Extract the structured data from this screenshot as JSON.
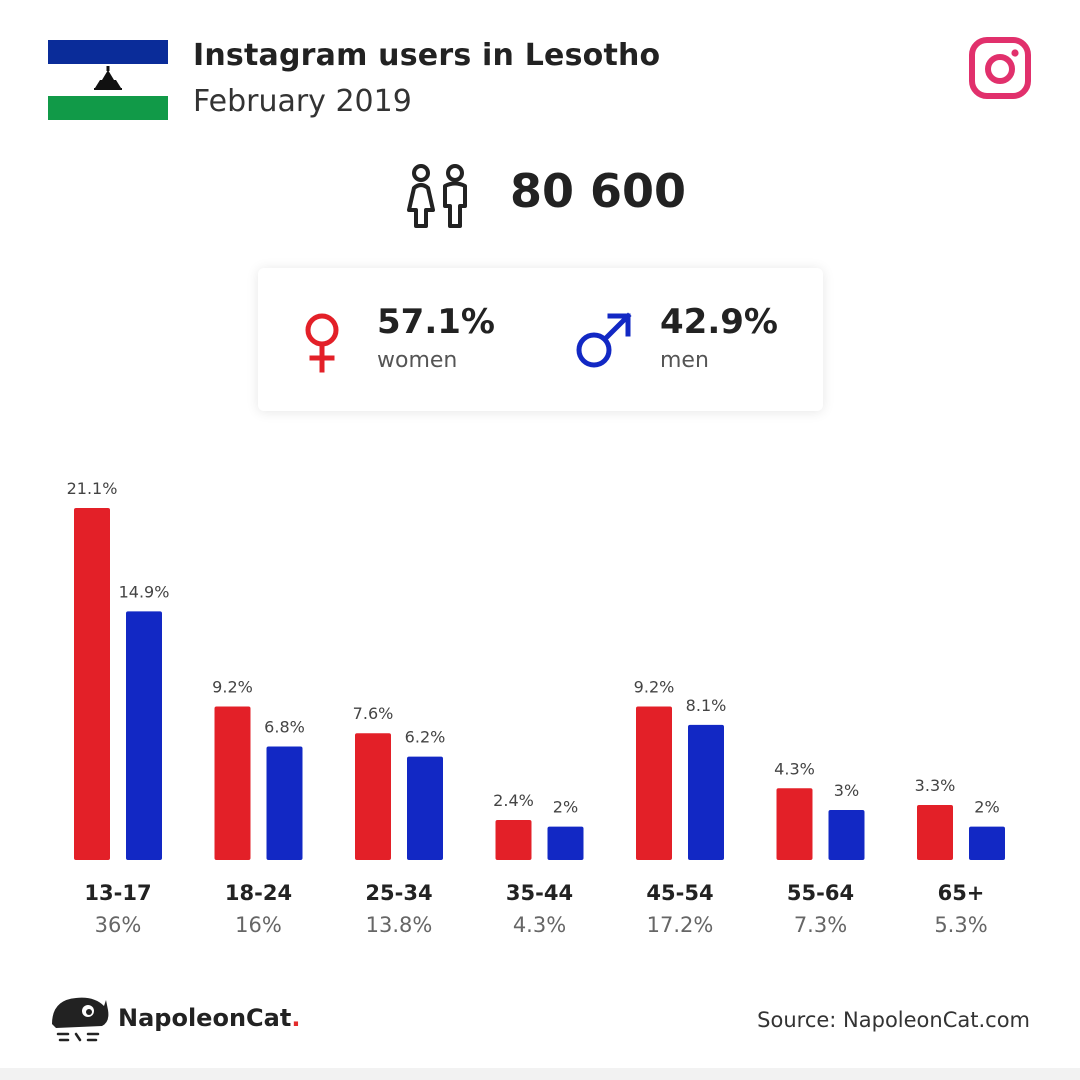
{
  "header": {
    "title": "Instagram users in Lesotho",
    "subtitle": "February 2019"
  },
  "flag": {
    "icon": "lesotho-flag-icon",
    "colors": {
      "blue": "#0a2c99",
      "white": "#ffffff",
      "green": "#119a48",
      "hat": "#111111"
    }
  },
  "instagram": {
    "icon": "instagram-icon",
    "color": "#e1306c"
  },
  "total": {
    "icon": "people-icon",
    "value": "80 600"
  },
  "gender": {
    "women": {
      "pct": "57.1%",
      "label": "women",
      "icon": "female-symbol-icon",
      "color": "#e32028"
    },
    "men": {
      "pct": "42.9%",
      "label": "men",
      "icon": "male-symbol-icon",
      "color": "#1228c4"
    }
  },
  "chart_data": {
    "type": "bar",
    "categories": [
      "13-17",
      "18-24",
      "25-34",
      "35-44",
      "45-54",
      "55-64",
      "65+"
    ],
    "category_totals": [
      "36%",
      "16%",
      "13.8%",
      "4.3%",
      "17.2%",
      "7.3%",
      "5.3%"
    ],
    "series": [
      {
        "values": [
          21.1,
          9.2,
          7.6,
          2.4,
          9.2,
          4.3,
          3.3
        ],
        "labels": [
          "21.1%",
          "9.2%",
          "7.6%",
          "2.4%",
          "9.2%",
          "4.3%",
          "3.3%"
        ],
        "color": "#e32028"
      },
      {
        "values": [
          14.9,
          6.8,
          6.2,
          2,
          8.1,
          3,
          2
        ],
        "labels": [
          "14.9%",
          "6.8%",
          "6.2%",
          "2%",
          "8.1%",
          "3%",
          "2%"
        ],
        "color": "#1228c4"
      }
    ],
    "ylim": [
      0,
      21.1
    ],
    "grid": false,
    "legend": "none"
  },
  "footer": {
    "logo_icon": "napoleoncat-logo-icon",
    "brand": "NapoleonCat",
    "brand_dot": ".",
    "source": "Source: NapoleonCat.com"
  }
}
